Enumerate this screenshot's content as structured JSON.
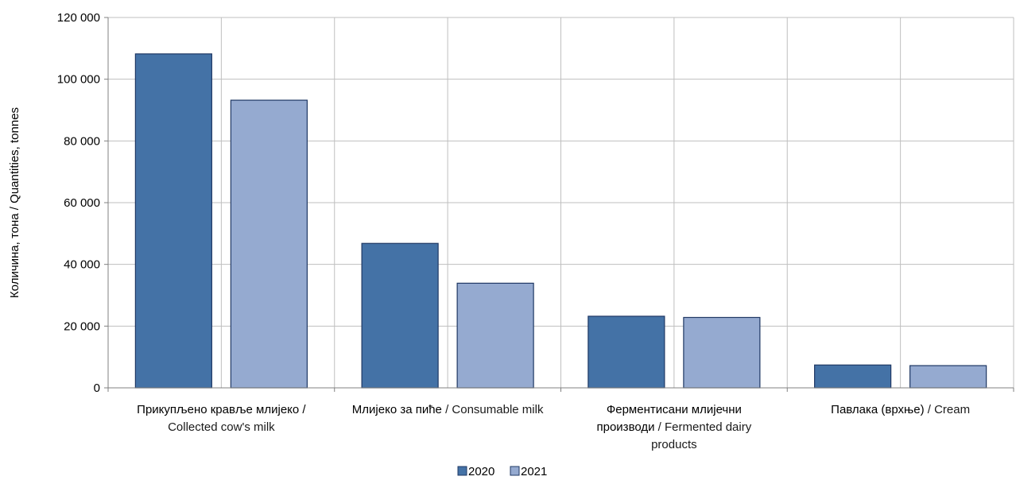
{
  "chart_data": {
    "type": "bar",
    "categories": [
      "Прикупљено кравље млијеко / Collected cow's milk",
      "Млијеко за пиће / Consumable milk",
      "Ферментисани млијечни производи / Fermented dairy products",
      "Павлака (врхње) / Cream"
    ],
    "category_label_lines": [
      [
        [
          {
            "text": "Прикупљено кравље млијеко /",
            "serbian": true
          }
        ],
        [
          {
            "text": "Collected cow's milk",
            "serbian": false
          }
        ]
      ],
      [
        [
          {
            "text": "Млијеко за пиће",
            "serbian": true
          },
          {
            "text": " / Consumable milk",
            "serbian": false
          }
        ]
      ],
      [
        [
          {
            "text": "Ферментисани млијечни",
            "serbian": true
          }
        ],
        [
          {
            "text": "производи",
            "serbian": true
          },
          {
            "text": " / Fermented dairy",
            "serbian": false
          }
        ],
        [
          {
            "text": "products",
            "serbian": false
          }
        ]
      ],
      [
        [
          {
            "text": "Павлака (врхње)",
            "serbian": true
          },
          {
            "text": " / Cream",
            "serbian": false
          }
        ]
      ]
    ],
    "series": [
      {
        "name": "2020",
        "values": [
          108200,
          46800,
          23200,
          7400
        ],
        "color": "#4472a6"
      },
      {
        "name": "2021",
        "values": [
          93200,
          33900,
          22800,
          7200
        ],
        "color": "#95aad0"
      }
    ],
    "ylabel": "Количина, тона / Quantities, tonnes",
    "ylim": [
      0,
      120000
    ],
    "yticks": [
      0,
      20000,
      40000,
      60000,
      80000,
      100000,
      120000
    ],
    "ytick_labels": [
      "0",
      "20 000",
      "40 000",
      "60 000",
      "80 000",
      "100 000",
      "120 000"
    ],
    "grid": true,
    "legend_position": "bottom-center",
    "bar_outline_color": "#1f3864",
    "grid_color": "#bfbfbf",
    "axis_color": "#808080"
  }
}
